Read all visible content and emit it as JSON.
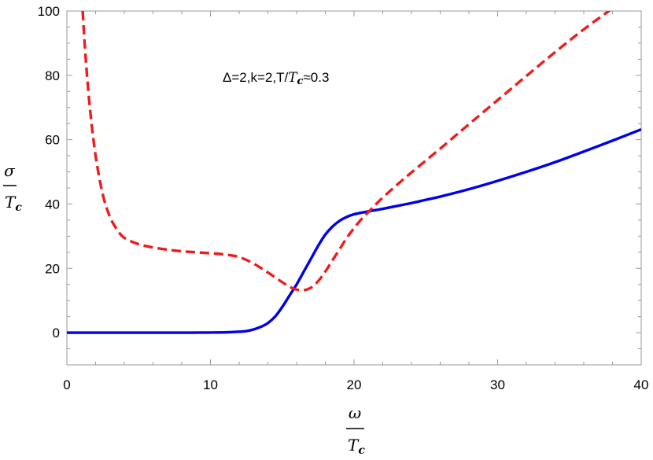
{
  "chart_data": {
    "type": "line",
    "title": "",
    "xlim": [
      0,
      40
    ],
    "ylim": [
      -10,
      100
    ],
    "x_ticks": [
      0,
      10,
      20,
      30,
      40
    ],
    "y_ticks": [
      0,
      20,
      40,
      60,
      80,
      100
    ],
    "x_tick_labels": [
      "0",
      "10",
      "20",
      "30",
      "40"
    ],
    "y_tick_labels": [
      "0",
      "20",
      "40",
      "60",
      "80",
      "100"
    ],
    "xlabel": {
      "numerator": "ω",
      "denominator_base": "T",
      "denominator_sub": "c"
    },
    "ylabel": {
      "numerator": "σ",
      "denominator_base": "T",
      "denominator_sub": "c"
    },
    "annotation": {
      "prefix": "Δ=2,k=2,T/",
      "base": "T",
      "sub": "c",
      "suffix": "≈0.3"
    },
    "grid": false,
    "legend": "none",
    "series": [
      {
        "style": "solid",
        "color": "#0000ee",
        "x": [
          0,
          2,
          4,
          6,
          8,
          10,
          11,
          12,
          12.5,
          13,
          13.5,
          14,
          14.5,
          15,
          15.5,
          16,
          16.5,
          17,
          17.5,
          18,
          18.5,
          19,
          19.5,
          20,
          20.5,
          21,
          21.5,
          22,
          23,
          24,
          25,
          26,
          28,
          30,
          32,
          34,
          36,
          38,
          40
        ],
        "y": [
          0,
          0,
          0,
          0,
          0,
          0.05,
          0.1,
          0.3,
          0.5,
          1.0,
          1.8,
          3.0,
          5.0,
          8.0,
          11.5,
          15.0,
          19.0,
          23.0,
          27.0,
          30.5,
          33.0,
          34.8,
          36.0,
          36.8,
          37.3,
          37.7,
          38.1,
          38.5,
          39.4,
          40.3,
          41.3,
          42.3,
          44.6,
          47.2,
          50.0,
          53.0,
          56.3,
          59.7,
          63.2
        ]
      },
      {
        "style": "dashed",
        "color": "#ee1c1c",
        "x": [
          1.1,
          1.3,
          1.6,
          2,
          2.5,
          3,
          3.5,
          4,
          5,
          6,
          7,
          8,
          9,
          10,
          11,
          12,
          13,
          14,
          15,
          15.5,
          16,
          16.5,
          17,
          17.5,
          18,
          18.5,
          19,
          19.5,
          20,
          20.5,
          21,
          21.5,
          22,
          23,
          24,
          25,
          26,
          27,
          28,
          30,
          32,
          34,
          36,
          38,
          38.4
        ],
        "y": [
          100,
          86,
          70,
          55,
          43,
          36,
          32,
          29.5,
          27.5,
          26.5,
          25.8,
          25.3,
          25.0,
          24.7,
          24.3,
          23.5,
          21.5,
          18.7,
          15.7,
          14.3,
          13.4,
          13.2,
          14.0,
          16.0,
          19.0,
          22.5,
          26.0,
          29.5,
          32.5,
          35.2,
          37.5,
          39.8,
          42.0,
          46.0,
          49.8,
          53.5,
          57.2,
          61.0,
          64.8,
          72.3,
          79.8,
          87.2,
          94.3,
          100.8,
          102
        ]
      }
    ]
  }
}
